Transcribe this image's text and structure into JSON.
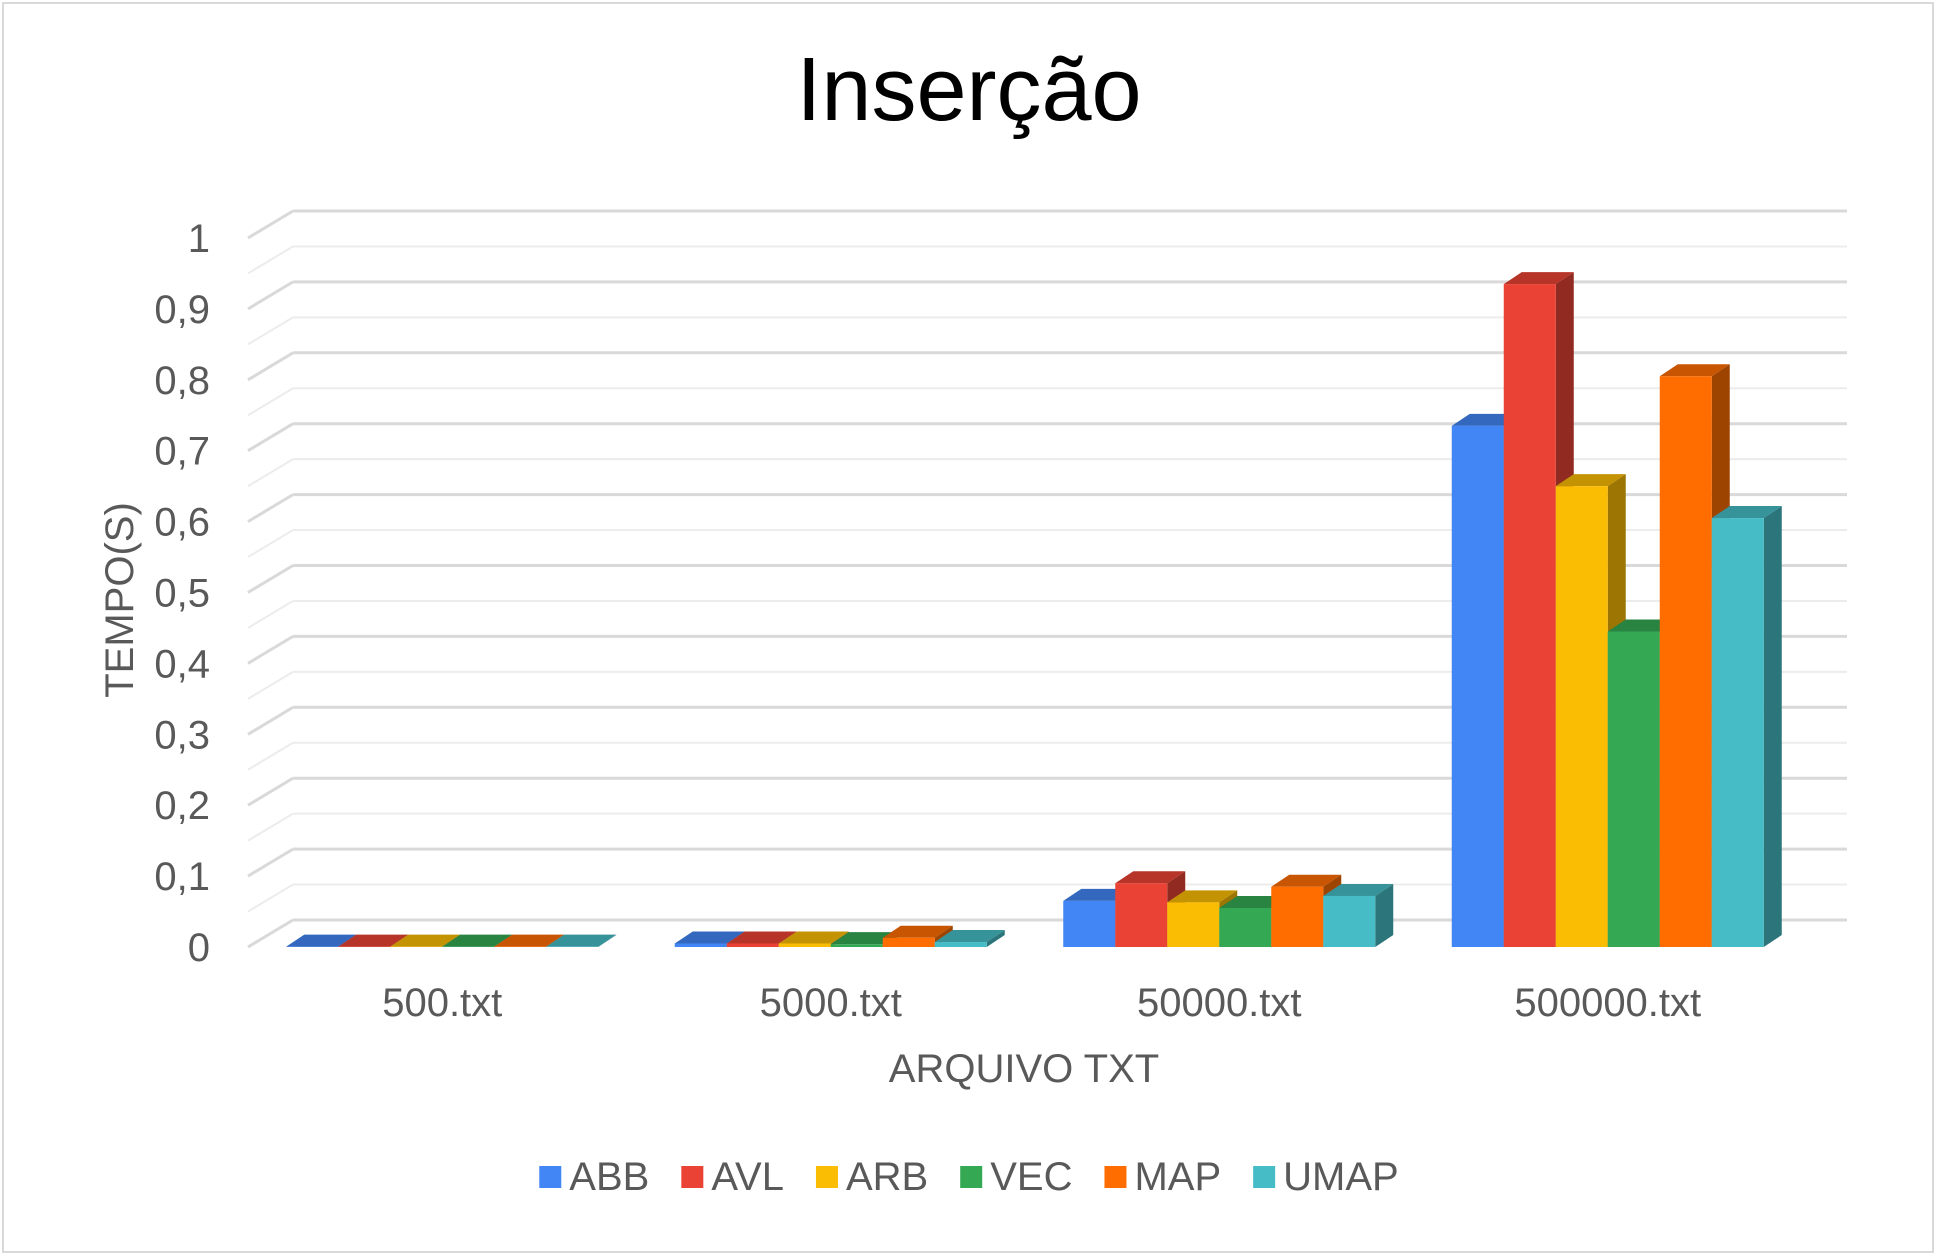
{
  "chart_data": {
    "type": "bar",
    "variant": "3d-clustered-column",
    "title": "Inserção",
    "xlabel": "ARQUIVO TXT",
    "ylabel": "TEMPO(S)",
    "ylim": [
      0,
      1
    ],
    "yticks": [
      "0",
      "0,1",
      "0,2",
      "0,3",
      "0,4",
      "0,5",
      "0,6",
      "0,7",
      "0,8",
      "0,9",
      "1"
    ],
    "grid": true,
    "legend_position": "bottom",
    "categories": [
      "500.txt",
      "5000.txt",
      "50000.txt",
      "500000.txt"
    ],
    "series": [
      {
        "name": "ABB",
        "color": "#4285F4",
        "values": [
          0.0005,
          0.005,
          0.065,
          0.735
        ]
      },
      {
        "name": "AVL",
        "color": "#EA4335",
        "values": [
          0.0005,
          0.005,
          0.09,
          0.935
        ]
      },
      {
        "name": "ARB",
        "color": "#FBBC04",
        "values": [
          0.0005,
          0.005,
          0.063,
          0.65
        ]
      },
      {
        "name": "VEC",
        "color": "#34A853",
        "values": [
          0.0005,
          0.004,
          0.055,
          0.445
        ]
      },
      {
        "name": "MAP",
        "color": "#FF6D01",
        "values": [
          0.0005,
          0.013,
          0.085,
          0.805
        ]
      },
      {
        "name": "UMAP",
        "color": "#46BDC6",
        "values": [
          0.0005,
          0.007,
          0.072,
          0.605
        ]
      }
    ]
  }
}
